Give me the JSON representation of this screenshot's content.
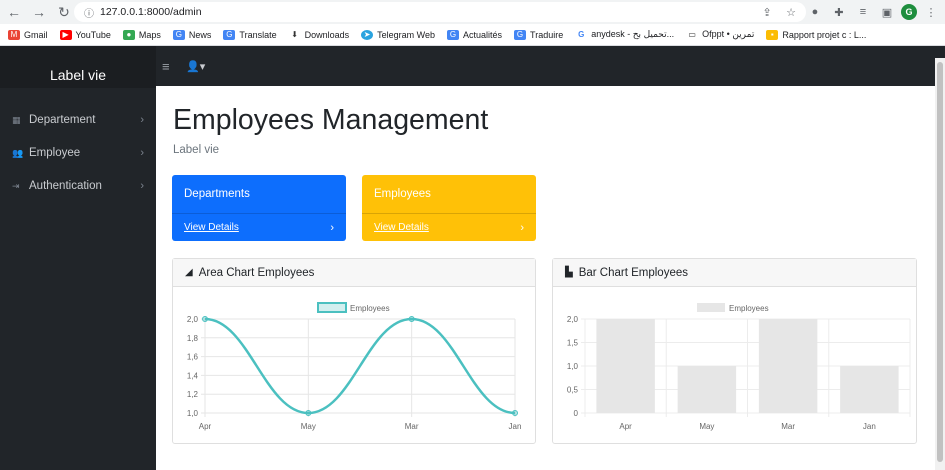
{
  "browser": {
    "url": "127.0.0.1:8000/admin",
    "profile_initial": "G",
    "bookmarks": [
      "Gmail",
      "YouTube",
      "Maps",
      "News",
      "Translate",
      "Downloads",
      "Telegram Web",
      "Actualités",
      "Traduire",
      "anydesk - تحميل بح...",
      "Ofppt • تمرين",
      "Rapport projet c : L..."
    ]
  },
  "sidebar": {
    "brand": "Label vie",
    "items": [
      {
        "label": "Departement",
        "icon": "table-icon"
      },
      {
        "label": "Employee",
        "icon": "users-icon"
      },
      {
        "label": "Authentication",
        "icon": "sign-in-icon"
      }
    ]
  },
  "main": {
    "title": "Employees Management",
    "subtitle": "Label vie",
    "cards": [
      {
        "title": "Departments",
        "link": "View Details",
        "color": "#0d6efd"
      },
      {
        "title": "Employees",
        "link": "View Details",
        "color": "#ffc107"
      }
    ]
  },
  "chart_data": [
    {
      "type": "area",
      "title": "Area Chart Employees",
      "legend": "Employees",
      "categories": [
        "Apr",
        "May",
        "Mar",
        "Jan"
      ],
      "values": [
        2,
        1,
        2,
        1
      ],
      "ylim": [
        1.0,
        2.0
      ],
      "yticks": [
        "2,0",
        "1,8",
        "1,6",
        "1,4",
        "1,2",
        "1,0"
      ],
      "color": "#4bc0c0"
    },
    {
      "type": "bar",
      "title": "Bar Chart Employees",
      "legend": "Employees",
      "categories": [
        "Apr",
        "May",
        "Mar",
        "Jan"
      ],
      "values": [
        2,
        1,
        2,
        1
      ],
      "ylim": [
        0,
        2.0
      ],
      "yticks": [
        "2,0",
        "1,5",
        "1,0",
        "0,5",
        "0"
      ],
      "color": "#e6e6e6"
    }
  ]
}
